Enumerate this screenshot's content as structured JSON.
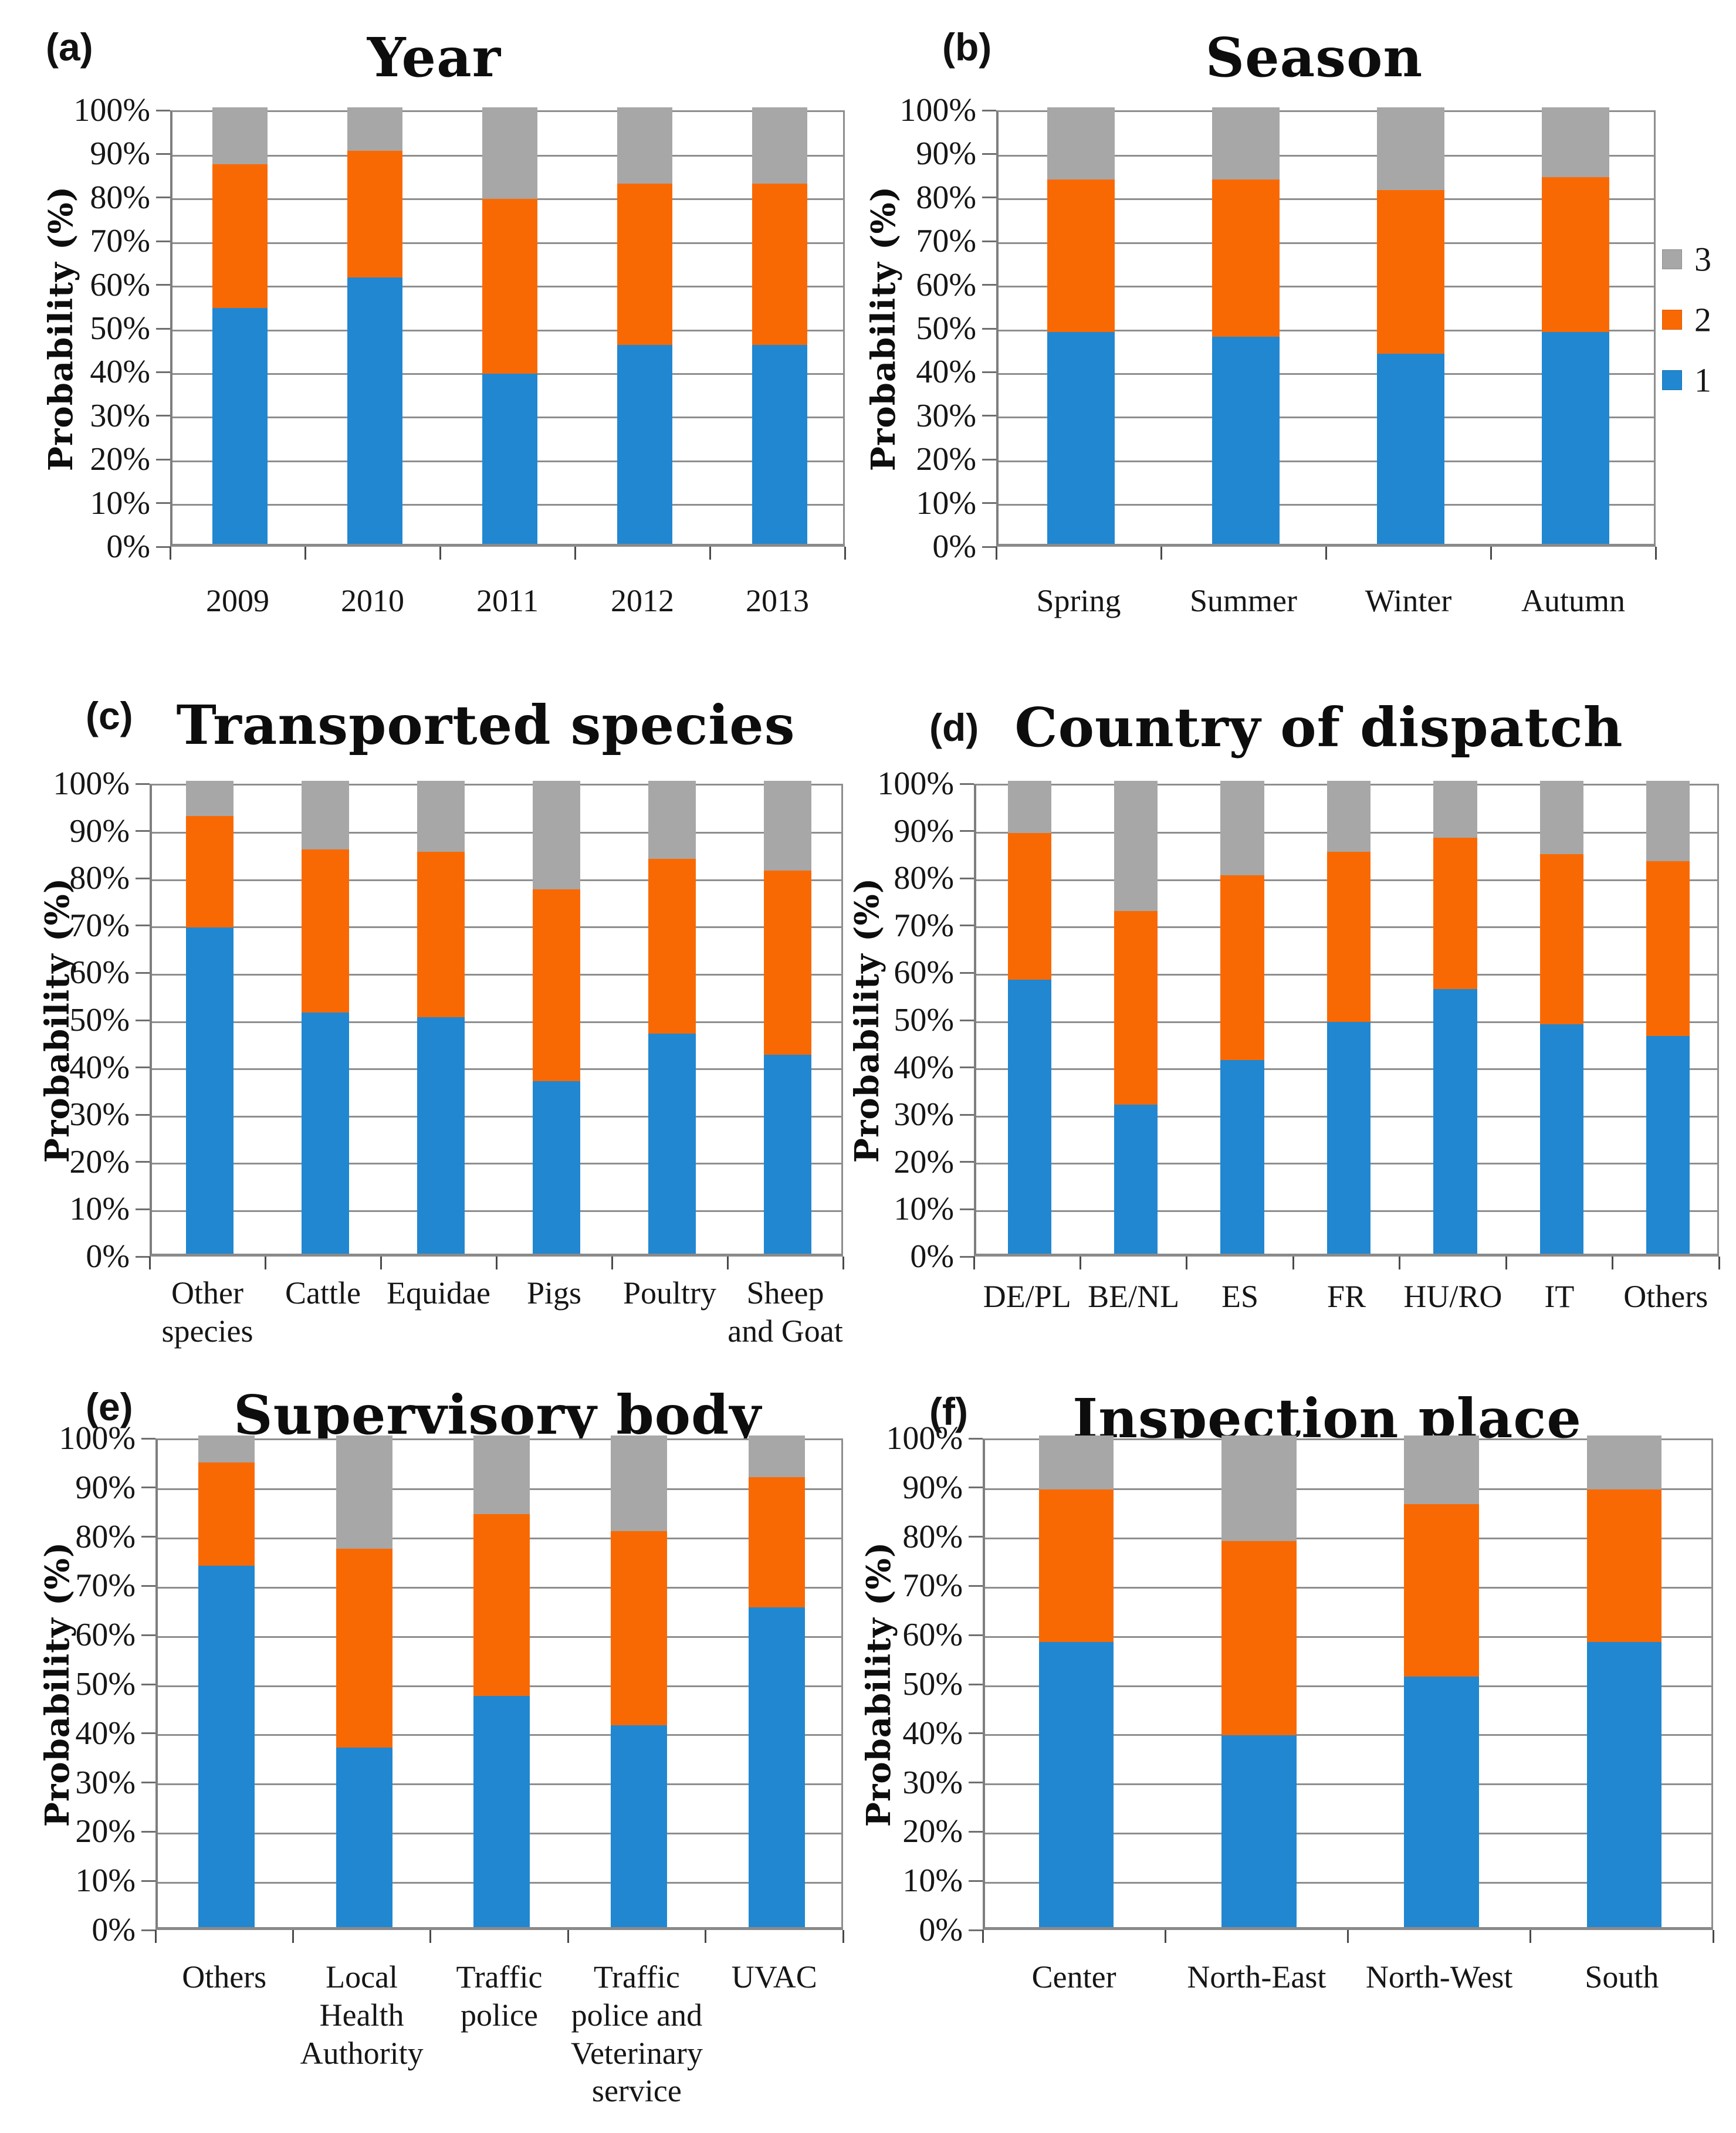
{
  "figure": {
    "y_axis": {
      "ticks": [
        "100%",
        "90%",
        "80%",
        "70%",
        "60%",
        "50%",
        "40%",
        "30%",
        "20%",
        "10%",
        "0%"
      ],
      "title": "Probability (%)"
    },
    "legend": {
      "items": [
        {
          "label": "3",
          "color": "#A7A7A7"
        },
        {
          "label": "2",
          "color": "#F96903"
        },
        {
          "label": "1",
          "color": "#2187D1"
        }
      ]
    },
    "colors": {
      "series1_blue": "#2187D1",
      "series2_orange": "#F96903",
      "series3_gray": "#A7A7A7",
      "gridline": "#8E8E8E"
    }
  },
  "chart_data": [
    {
      "type": "bar",
      "stacked": true,
      "panel": "a",
      "letter": "(a)",
      "title": "Year",
      "ylabel": "Probability (%)",
      "ylim": [
        0,
        100
      ],
      "categories": [
        "2009",
        "2010",
        "2011",
        "2012",
        "2013"
      ],
      "series": [
        {
          "name": "1",
          "color": "#2187D1",
          "values": [
            54,
            61,
            39,
            45.5,
            45.5
          ]
        },
        {
          "name": "2",
          "color": "#F96903",
          "values": [
            33,
            29,
            40,
            37,
            37
          ]
        },
        {
          "name": "3",
          "color": "#A7A7A7",
          "values": [
            13,
            10,
            21,
            17.5,
            17.5
          ]
        }
      ]
    },
    {
      "type": "bar",
      "stacked": true,
      "panel": "b",
      "letter": "(b)",
      "title": "Season",
      "ylabel": "Probability (%)",
      "ylim": [
        0,
        100
      ],
      "categories": [
        "Spring",
        "Summer",
        "Winter",
        "Autumn"
      ],
      "series": [
        {
          "name": "1",
          "color": "#2187D1",
          "values": [
            48.5,
            47.5,
            43.5,
            48.5
          ]
        },
        {
          "name": "2",
          "color": "#F96903",
          "values": [
            35,
            36,
            37.5,
            35.5
          ]
        },
        {
          "name": "3",
          "color": "#A7A7A7",
          "values": [
            16.5,
            16.5,
            19,
            16
          ]
        }
      ]
    },
    {
      "type": "bar",
      "stacked": true,
      "panel": "c",
      "letter": "(c)",
      "title": "Transported species",
      "ylabel": "Probability (%)",
      "ylim": [
        0,
        100
      ],
      "categories": [
        "Other\nspecies",
        "Cattle",
        "Equidae",
        "Pigs",
        "Poultry",
        "Sheep\nand Goat"
      ],
      "series": [
        {
          "name": "1",
          "color": "#2187D1",
          "values": [
            69,
            51,
            50,
            36.5,
            46.5,
            42
          ]
        },
        {
          "name": "2",
          "color": "#F96903",
          "values": [
            23.5,
            34.5,
            35,
            40.5,
            37,
            39
          ]
        },
        {
          "name": "3",
          "color": "#A7A7A7",
          "values": [
            7.5,
            14.5,
            15,
            23,
            16.5,
            19
          ]
        }
      ]
    },
    {
      "type": "bar",
      "stacked": true,
      "panel": "d",
      "letter": "(d)",
      "title": "Country of dispatch",
      "ylabel": "Probability (%)",
      "ylim": [
        0,
        100
      ],
      "categories": [
        "DE/PL",
        "BE/NL",
        "ES",
        "FR",
        "HU/RO",
        "IT",
        "Others"
      ],
      "series": [
        {
          "name": "1",
          "color": "#2187D1",
          "values": [
            58,
            31.5,
            41,
            49,
            56,
            48.5,
            46
          ]
        },
        {
          "name": "2",
          "color": "#F96903",
          "values": [
            31,
            41,
            39,
            36,
            32,
            36,
            37
          ]
        },
        {
          "name": "3",
          "color": "#A7A7A7",
          "values": [
            11,
            27.5,
            20,
            15,
            12,
            15.5,
            17
          ]
        }
      ]
    },
    {
      "type": "bar",
      "stacked": true,
      "panel": "e",
      "letter": "(e)",
      "title": "Supervisory body",
      "ylabel": "Probability (%)",
      "ylim": [
        0,
        100
      ],
      "categories": [
        "Others",
        "Local\nHealth\nAuthority",
        "Traffic\npolice",
        "Traffic\npolice and\nVeterinary\nservice",
        "UVAC"
      ],
      "series": [
        {
          "name": "1",
          "color": "#2187D1",
          "values": [
            73.5,
            36.5,
            47,
            41,
            65
          ]
        },
        {
          "name": "2",
          "color": "#F96903",
          "values": [
            21,
            40.5,
            37,
            39.5,
            26.5
          ]
        },
        {
          "name": "3",
          "color": "#A7A7A7",
          "values": [
            5.5,
            23,
            16,
            19.5,
            8.5
          ]
        }
      ]
    },
    {
      "type": "bar",
      "stacked": true,
      "panel": "f",
      "letter": "(f)",
      "title": "Inspection place",
      "ylabel": "Probability (%)",
      "ylim": [
        0,
        100
      ],
      "categories": [
        "Center",
        "North-East",
        "North-West",
        "South"
      ],
      "series": [
        {
          "name": "1",
          "color": "#2187D1",
          "values": [
            58,
            39,
            51,
            58
          ]
        },
        {
          "name": "2",
          "color": "#F96903",
          "values": [
            31,
            39.5,
            35,
            31
          ]
        },
        {
          "name": "3",
          "color": "#A7A7A7",
          "values": [
            11,
            21.5,
            14,
            11
          ]
        }
      ]
    }
  ]
}
